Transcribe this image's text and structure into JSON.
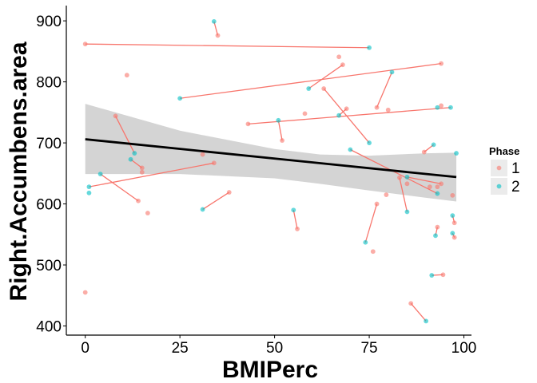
{
  "chart_data": {
    "type": "scatter",
    "xlabel": "BMIPerc",
    "ylabel": "Right.Accumbens.area",
    "xlim": [
      -5,
      102
    ],
    "ylim": [
      385,
      925
    ],
    "xticks": [
      0,
      25,
      50,
      75,
      100
    ],
    "xtick_labels": [
      "0",
      "25",
      "50",
      "75",
      "100"
    ],
    "yticks": [
      400,
      500,
      600,
      700,
      800,
      900
    ],
    "ytick_labels": [
      "400",
      "500",
      "600",
      "700",
      "800",
      "900"
    ],
    "grid": false,
    "legend": {
      "title": "Phase",
      "placement": "right",
      "entries": [
        {
          "label": "1",
          "color": "#F8766D"
        },
        {
          "label": "2",
          "color": "#00BFC4"
        }
      ]
    },
    "colors": {
      "phase1": "#F8766D",
      "phase2": "#00BFC4",
      "fit_line": "#000000",
      "ribbon": "#cccccc",
      "pair_line": "#F8766D"
    },
    "series": [
      {
        "name": "1",
        "points": [
          [
            0,
            862
          ],
          [
            0,
            455
          ],
          [
            11,
            811
          ],
          [
            8,
            744
          ],
          [
            14,
            605
          ],
          [
            15,
            659
          ],
          [
            15,
            652
          ],
          [
            16.5,
            585
          ],
          [
            31,
            681
          ],
          [
            34,
            667
          ],
          [
            35,
            876
          ],
          [
            38,
            619
          ],
          [
            43,
            731
          ],
          [
            52,
            704
          ],
          [
            56,
            559
          ],
          [
            58,
            748
          ],
          [
            63,
            789
          ],
          [
            67,
            841
          ],
          [
            68,
            828
          ],
          [
            69,
            756
          ],
          [
            76,
            522
          ],
          [
            77,
            758
          ],
          [
            77,
            600
          ],
          [
            79.5,
            615
          ],
          [
            80,
            754
          ],
          [
            83,
            643
          ],
          [
            85,
            633
          ],
          [
            86,
            437
          ],
          [
            89.5,
            685
          ],
          [
            91,
            628
          ],
          [
            93,
            562
          ],
          [
            93,
            628
          ],
          [
            94,
            761
          ],
          [
            94,
            633
          ],
          [
            94,
            830
          ],
          [
            94.5,
            484
          ],
          [
            97,
            614
          ],
          [
            97.5,
            545
          ],
          [
            97.5,
            569
          ]
        ]
      },
      {
        "name": "2",
        "points": [
          [
            1,
            628
          ],
          [
            1,
            618
          ],
          [
            4,
            649
          ],
          [
            12,
            673
          ],
          [
            13,
            683
          ],
          [
            25,
            773
          ],
          [
            31,
            591
          ],
          [
            34,
            899
          ],
          [
            51,
            737
          ],
          [
            55,
            590
          ],
          [
            59,
            789
          ],
          [
            67,
            745
          ],
          [
            70,
            689
          ],
          [
            74,
            537
          ],
          [
            75,
            700
          ],
          [
            75,
            856
          ],
          [
            81,
            816
          ],
          [
            85,
            587
          ],
          [
            85,
            644
          ],
          [
            90,
            408
          ],
          [
            91.5,
            483
          ],
          [
            92,
            697
          ],
          [
            92.5,
            548
          ],
          [
            93,
            758
          ],
          [
            93,
            617
          ],
          [
            96.5,
            758
          ],
          [
            97,
            552
          ],
          [
            97,
            581
          ],
          [
            98,
            683
          ]
        ]
      }
    ],
    "pairs": [
      [
        [
          0,
          862
        ],
        [
          75,
          856
        ]
      ],
      [
        [
          1,
          628
        ],
        [
          34,
          667
        ]
      ],
      [
        [
          4,
          649
        ],
        [
          14,
          605
        ]
      ],
      [
        [
          8,
          744
        ],
        [
          13,
          683
        ]
      ],
      [
        [
          12,
          673
        ],
        [
          15,
          659
        ]
      ],
      [
        [
          31,
          591
        ],
        [
          38,
          619
        ]
      ],
      [
        [
          34,
          899
        ],
        [
          35,
          876
        ]
      ],
      [
        [
          25,
          773
        ],
        [
          94,
          830
        ]
      ],
      [
        [
          43,
          731
        ],
        [
          96.5,
          758
        ]
      ],
      [
        [
          51,
          737
        ],
        [
          52,
          704
        ]
      ],
      [
        [
          55,
          590
        ],
        [
          56,
          559
        ]
      ],
      [
        [
          59,
          789
        ],
        [
          68,
          828
        ]
      ],
      [
        [
          63,
          789
        ],
        [
          75,
          700
        ]
      ],
      [
        [
          67,
          745
        ],
        [
          69,
          756
        ]
      ],
      [
        [
          70,
          689
        ],
        [
          93,
          617
        ]
      ],
      [
        [
          74,
          537
        ],
        [
          77,
          600
        ]
      ],
      [
        [
          77,
          758
        ],
        [
          81,
          816
        ]
      ],
      [
        [
          83,
          643
        ],
        [
          85,
          587
        ]
      ],
      [
        [
          85,
          644
        ],
        [
          94,
          633
        ]
      ],
      [
        [
          86,
          437
        ],
        [
          90,
          408
        ]
      ],
      [
        [
          89.5,
          685
        ],
        [
          92,
          697
        ]
      ],
      [
        [
          91.5,
          483
        ],
        [
          94.5,
          484
        ]
      ],
      [
        [
          92.5,
          548
        ],
        [
          93,
          562
        ]
      ],
      [
        [
          97,
          581
        ],
        [
          97.5,
          569
        ]
      ],
      [
        [
          97,
          552
        ],
        [
          97.5,
          545
        ]
      ]
    ],
    "fit": {
      "line": [
        [
          0,
          706
        ],
        [
          98,
          644
        ]
      ],
      "ci_upper": [
        [
          0,
          764
        ],
        [
          25,
          720
        ],
        [
          50,
          690
        ],
        [
          62,
          681
        ],
        [
          75,
          679
        ],
        [
          90,
          683
        ],
        [
          98,
          684
        ]
      ],
      "ci_lower": [
        [
          0,
          649
        ],
        [
          25,
          649
        ],
        [
          50,
          642
        ],
        [
          62,
          633
        ],
        [
          75,
          622
        ],
        [
          90,
          610
        ],
        [
          98,
          604
        ]
      ]
    }
  }
}
